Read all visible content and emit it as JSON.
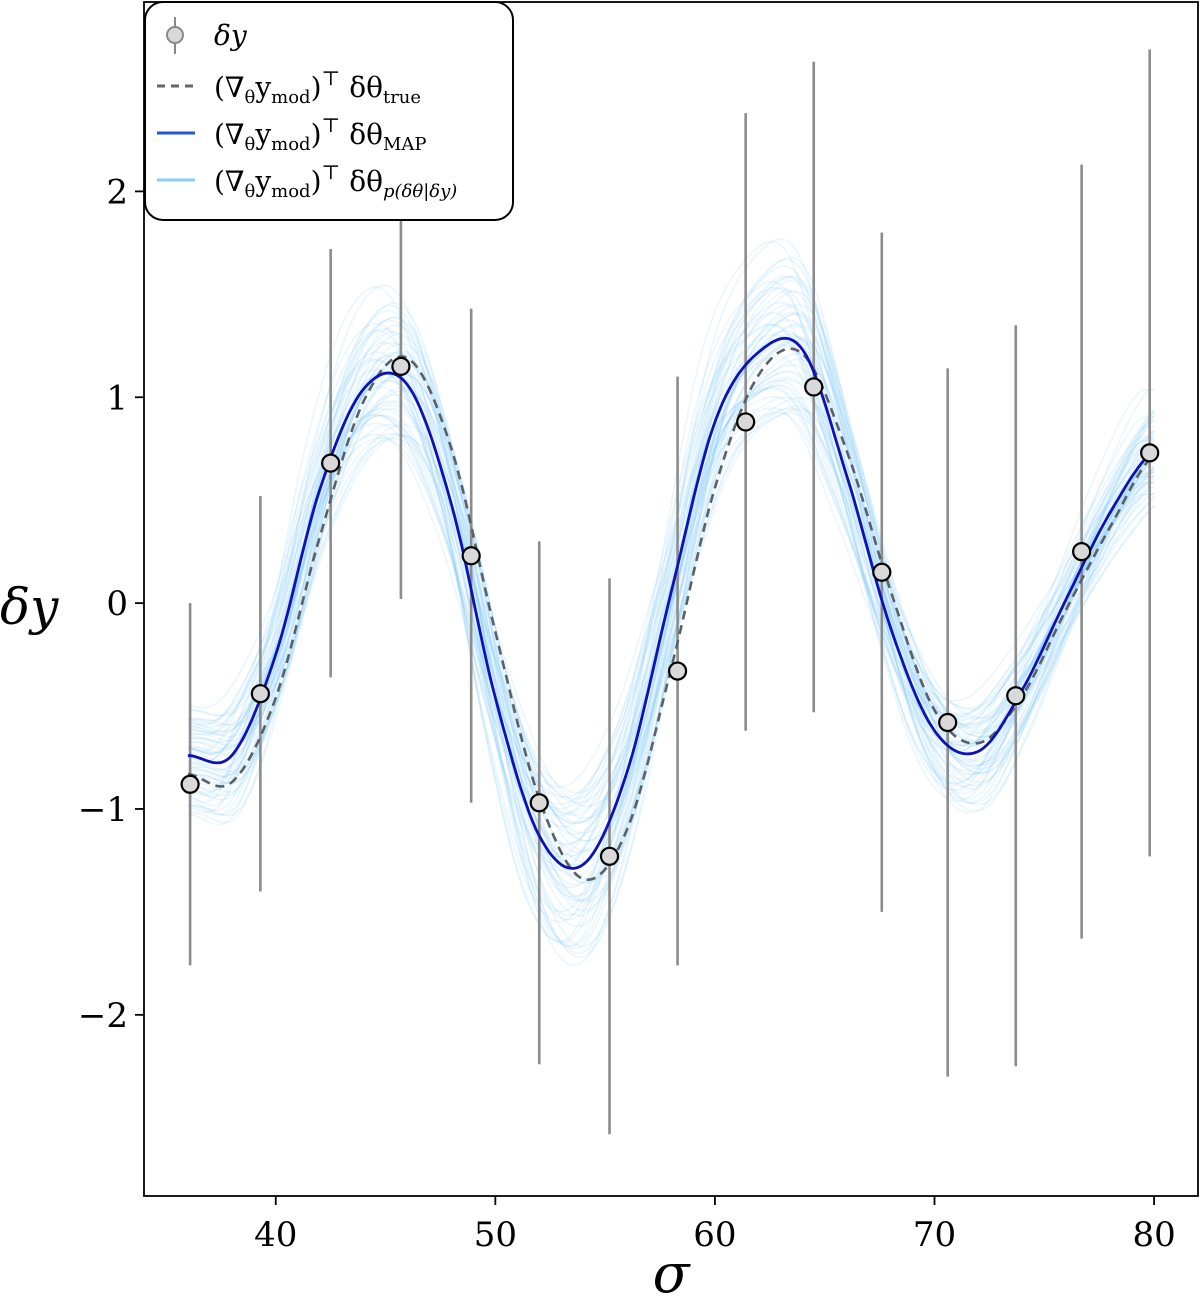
{
  "chart_data": {
    "type": "scatter",
    "xlabel": "σ",
    "ylabel": "δy",
    "xlim": [
      34,
      82
    ],
    "ylim": [
      -2.88,
      2.92
    ],
    "xticks": [
      "40",
      "50",
      "60",
      "70",
      "80"
    ],
    "yticks": [
      "−2",
      "−1",
      "0",
      "1",
      "2"
    ],
    "legend": {
      "placement": "top-left",
      "entries": [
        {
          "label": "δy",
          "style": "errorbar-marker",
          "color": "#888888"
        },
        {
          "label": "(∇θymod)ᵀ δθtrue",
          "style": "dashed",
          "color": "#666666"
        },
        {
          "label": "(∇θymod)ᵀ δθMAP",
          "style": "solid",
          "color": "#2255dd"
        },
        {
          "label": "(∇θymod)ᵀ δθp(δθ|δy)",
          "style": "solid-light",
          "color": "#88ccff"
        }
      ]
    },
    "observations": {
      "name": "δy",
      "x": [
        36.1,
        39.3,
        42.5,
        45.7,
        48.9,
        52.0,
        55.2,
        58.3,
        61.4,
        64.5,
        67.6,
        70.6,
        73.7,
        76.7,
        79.8
      ],
      "y": [
        -0.88,
        -0.44,
        0.68,
        1.15,
        0.23,
        -0.97,
        -1.23,
        -0.33,
        0.88,
        1.05,
        0.15,
        -0.58,
        -0.45,
        0.25,
        0.73
      ],
      "yerr": [
        0.88,
        0.96,
        1.04,
        1.13,
        1.2,
        1.27,
        1.35,
        1.43,
        1.5,
        1.58,
        1.65,
        1.72,
        1.8,
        1.88,
        1.96
      ]
    },
    "curve_x": [
      36.0,
      38.0,
      40.0,
      42.0,
      44.0,
      46.0,
      48.0,
      50.0,
      52.0,
      54.0,
      56.0,
      58.0,
      60.0,
      62.0,
      64.0,
      66.0,
      68.0,
      70.0,
      72.0,
      74.0,
      76.0,
      78.0,
      80.0
    ],
    "true_curve": [
      -0.83,
      -0.87,
      -0.46,
      0.32,
      0.98,
      1.19,
      0.75,
      -0.14,
      -0.95,
      -1.34,
      -1.1,
      -0.32,
      0.56,
      1.11,
      1.21,
      0.74,
      0.06,
      -0.52,
      -0.68,
      -0.45,
      -0.03,
      0.37,
      0.72
    ],
    "map_curve": [
      -0.74,
      -0.74,
      -0.25,
      0.55,
      1.04,
      1.06,
      0.48,
      -0.46,
      -1.13,
      -1.27,
      -0.82,
      0.05,
      0.88,
      1.22,
      1.23,
      0.62,
      -0.12,
      -0.62,
      -0.72,
      -0.42,
      0.02,
      0.44,
      0.74
    ],
    "posterior_samples": {
      "count": 60,
      "color": "#7cc4f8"
    },
    "grid": false
  }
}
